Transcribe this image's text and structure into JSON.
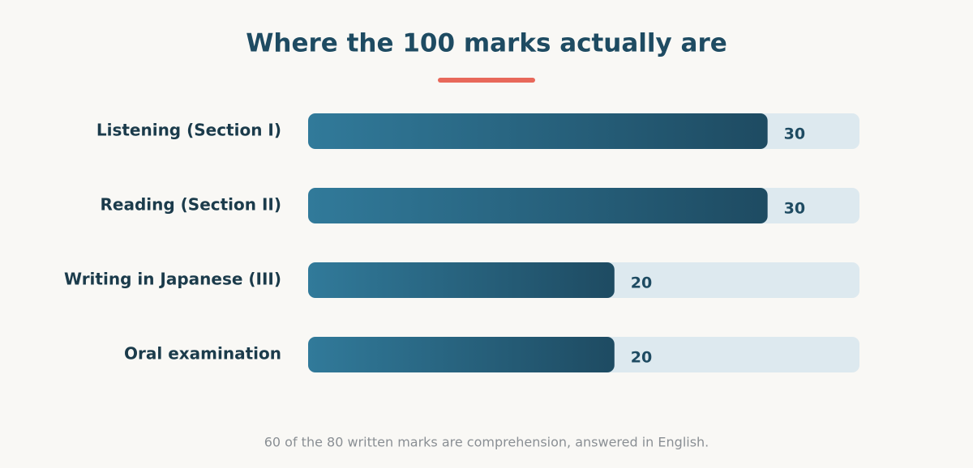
{
  "chart_data": {
    "type": "hbar",
    "title": "Where the 100 marks actually are",
    "categories": [
      "Listening (Section I)",
      "Reading (Section II)",
      "Writing in Japanese (III)",
      "Oral examination"
    ],
    "values": [
      30,
      30,
      20,
      20
    ],
    "xlim": [
      0,
      36
    ],
    "gradient": [
      "#317a9a",
      "#1e4b62"
    ],
    "track_color": "#dde9ef",
    "footnote": "60 of the 80 written marks are comprehension, answered in English."
  }
}
